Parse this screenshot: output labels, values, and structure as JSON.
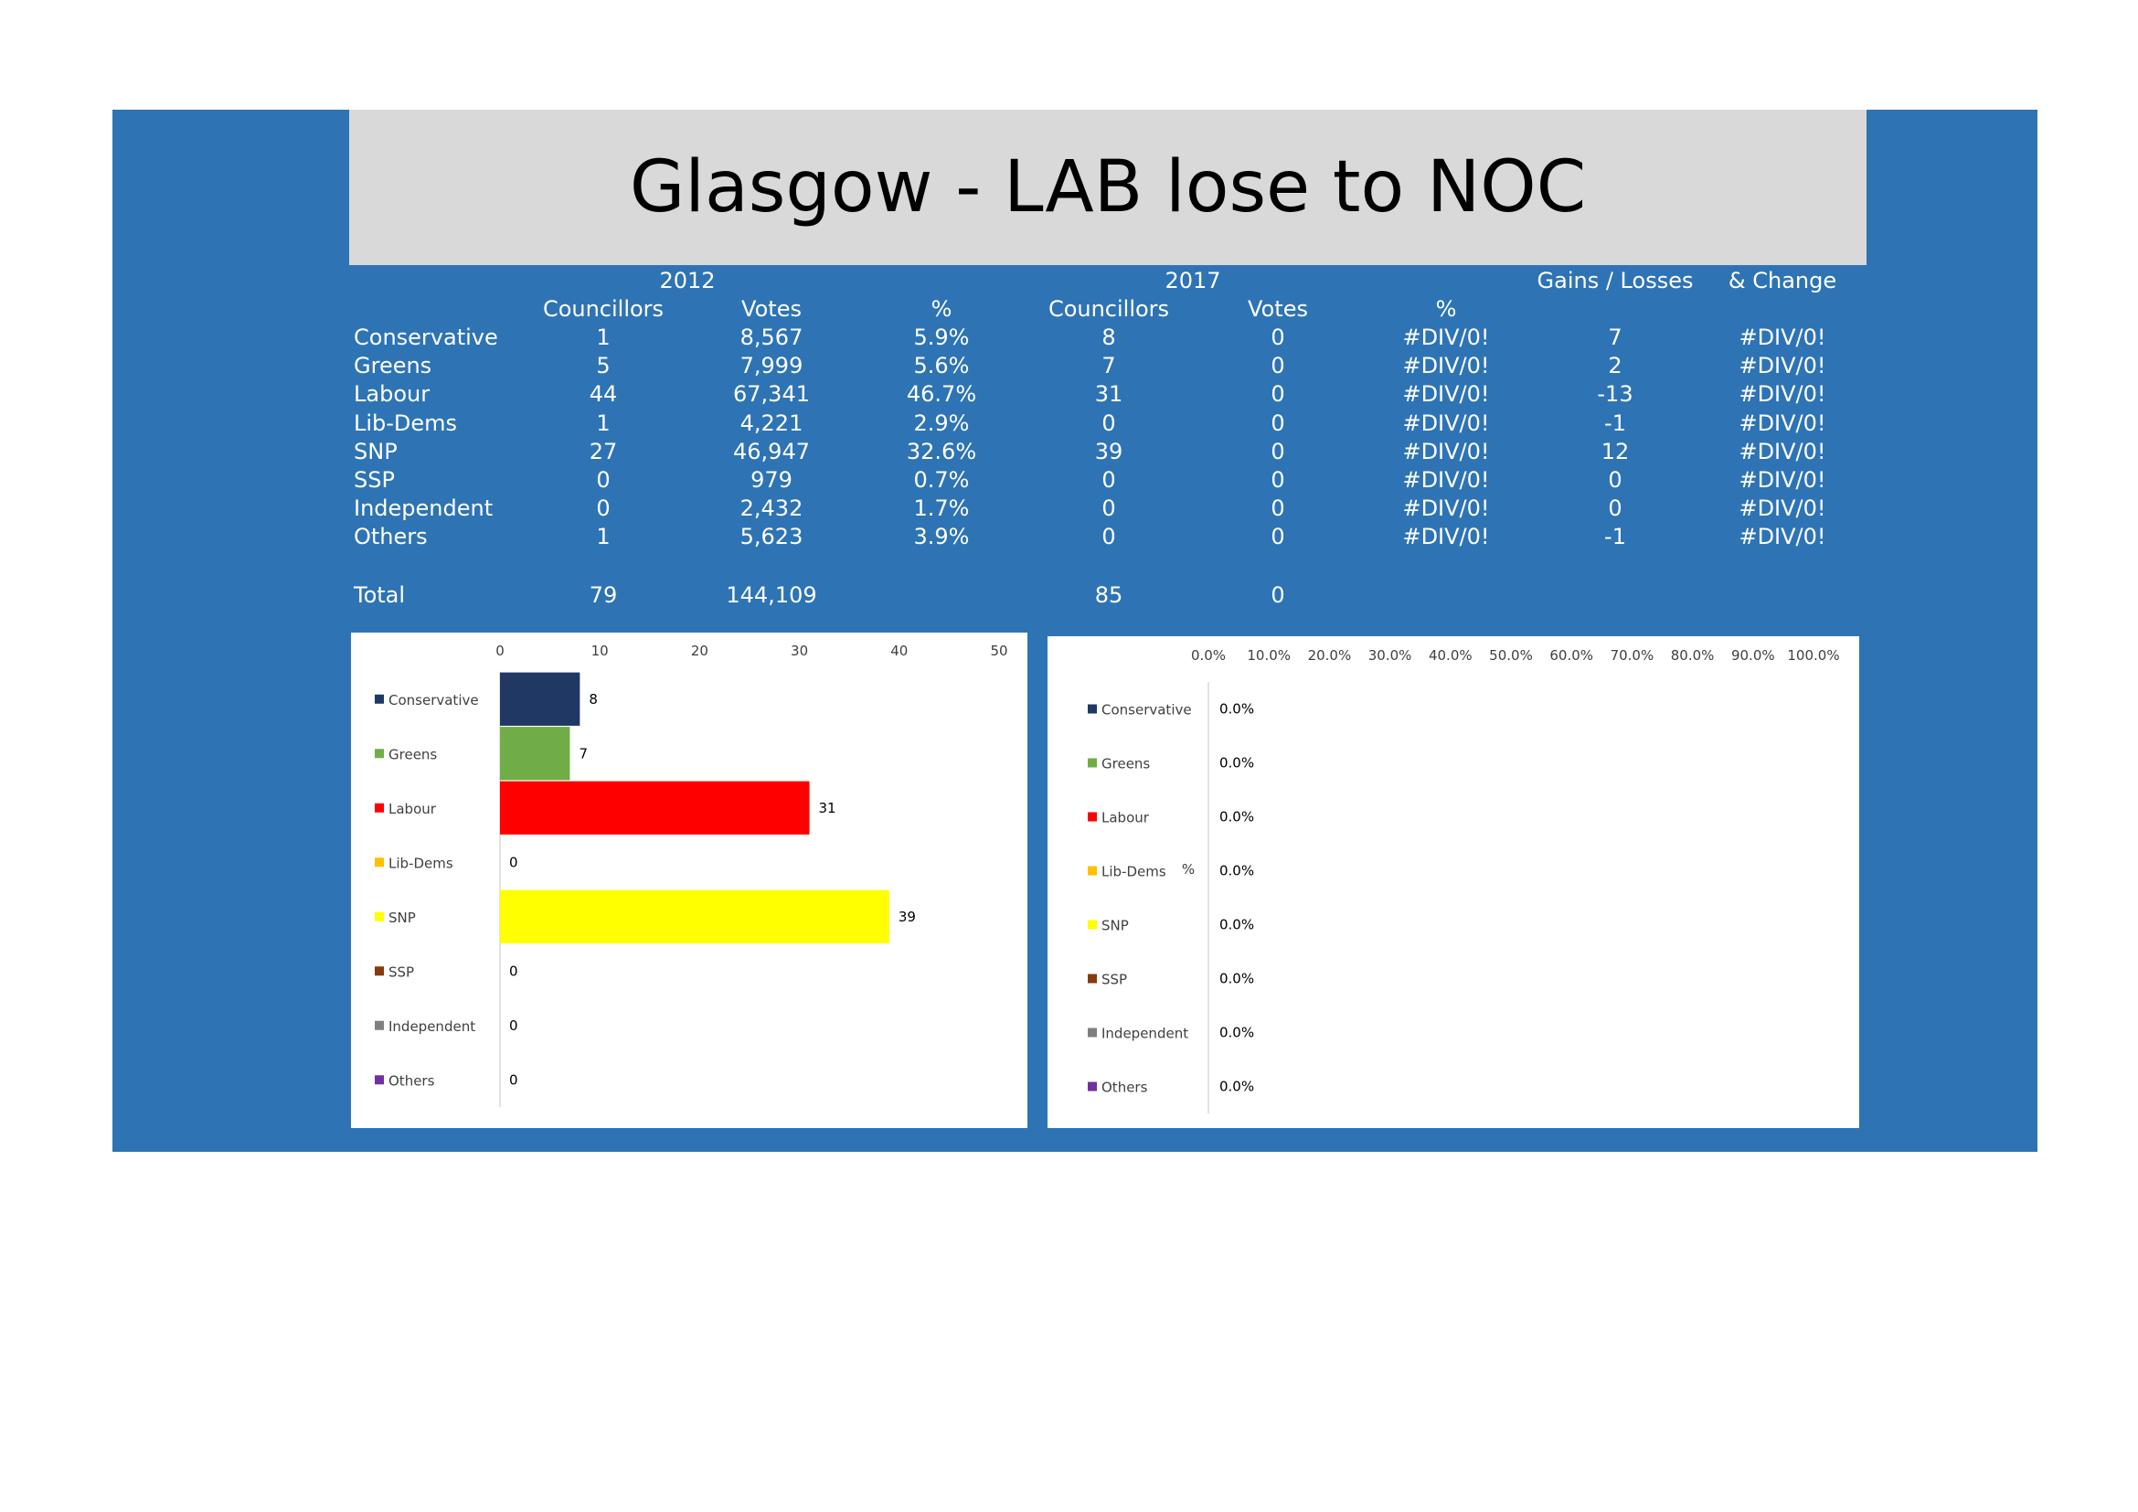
{
  "title": "Glasgow - LAB lose to NOC",
  "table": {
    "year_headers": [
      "2012",
      "2017"
    ],
    "gains_losses_header": "Gains / Losses",
    "change_header": "& Change",
    "sub_headers": [
      "Councillors",
      "Votes",
      "%",
      "Councillors",
      "Votes",
      "%"
    ],
    "rows": [
      {
        "party": "Conservative",
        "c2012": "1",
        "v2012": "8,567",
        "p2012": "5.9%",
        "c2017": "8",
        "v2017": "0",
        "p2017": "#DIV/0!",
        "gl": "7",
        "chg": "#DIV/0!"
      },
      {
        "party": "Greens",
        "c2012": "5",
        "v2012": "7,999",
        "p2012": "5.6%",
        "c2017": "7",
        "v2017": "0",
        "p2017": "#DIV/0!",
        "gl": "2",
        "chg": "#DIV/0!"
      },
      {
        "party": "Labour",
        "c2012": "44",
        "v2012": "67,341",
        "p2012": "46.7%",
        "c2017": "31",
        "v2017": "0",
        "p2017": "#DIV/0!",
        "gl": "-13",
        "chg": "#DIV/0!"
      },
      {
        "party": "Lib-Dems",
        "c2012": "1",
        "v2012": "4,221",
        "p2012": "2.9%",
        "c2017": "0",
        "v2017": "0",
        "p2017": "#DIV/0!",
        "gl": "-1",
        "chg": "#DIV/0!"
      },
      {
        "party": "SNP",
        "c2012": "27",
        "v2012": "46,947",
        "p2012": "32.6%",
        "c2017": "39",
        "v2017": "0",
        "p2017": "#DIV/0!",
        "gl": "12",
        "chg": "#DIV/0!"
      },
      {
        "party": "SSP",
        "c2012": "0",
        "v2012": "979",
        "p2012": "0.7%",
        "c2017": "0",
        "v2017": "0",
        "p2017": "#DIV/0!",
        "gl": "0",
        "chg": "#DIV/0!"
      },
      {
        "party": "Independent",
        "c2012": "0",
        "v2012": "2,432",
        "p2012": "1.7%",
        "c2017": "0",
        "v2017": "0",
        "p2017": "#DIV/0!",
        "gl": "0",
        "chg": "#DIV/0!"
      },
      {
        "party": "Others",
        "c2012": "1",
        "v2012": "5,623",
        "p2012": "3.9%",
        "c2017": "0",
        "v2017": "0",
        "p2017": "#DIV/0!",
        "gl": "-1",
        "chg": "#DIV/0!"
      }
    ],
    "total": {
      "label": "Total",
      "c2012": "79",
      "v2012": "144,109",
      "c2017": "85",
      "v2017": "0"
    }
  },
  "colors": {
    "Conservative": "#1f3864",
    "Greens": "#70ad47",
    "Labour": "#ff0000",
    "Lib-Dems": "#ffc000",
    "SNP": "#ffff00",
    "SSP": "#843c0c",
    "Independent": "#7f7f7f",
    "Others": "#7030a0"
  },
  "chart_data": [
    {
      "type": "bar",
      "orientation": "horizontal",
      "categories": [
        "Conservative",
        "Greens",
        "Labour",
        "Lib-Dems",
        "SNP",
        "SSP",
        "Independent",
        "Others"
      ],
      "values": [
        8,
        7,
        31,
        0,
        39,
        0,
        0,
        0
      ],
      "data_labels": [
        "8",
        "7",
        "31",
        "0",
        "39",
        "0",
        "0",
        "0"
      ],
      "xlim": [
        0,
        50
      ],
      "ticks": [
        "0",
        "10",
        "20",
        "30",
        "40",
        "50"
      ],
      "tick_values": [
        0,
        10,
        20,
        30,
        40,
        50
      ],
      "title": "",
      "xlabel": "",
      "ylabel": "",
      "grid": false,
      "legend": "left"
    },
    {
      "type": "bar",
      "orientation": "horizontal",
      "categories": [
        "Conservative",
        "Greens",
        "Labour",
        "Lib-Dems",
        "SNP",
        "SSP",
        "Independent",
        "Others"
      ],
      "values": [
        0,
        0,
        0,
        0,
        0,
        0,
        0,
        0
      ],
      "data_labels": [
        "0.0%",
        "0.0%",
        "0.0%",
        "0.0%",
        "0.0%",
        "0.0%",
        "0.0%",
        "0.0%"
      ],
      "xlim": [
        0,
        1
      ],
      "ticks": [
        "0.0%",
        "10.0%",
        "20.0%",
        "30.0%",
        "40.0%",
        "50.0%",
        "60.0%",
        "70.0%",
        "80.0%",
        "90.0%",
        "100.0%"
      ],
      "tick_values": [
        0,
        0.1,
        0.2,
        0.3,
        0.4,
        0.5,
        0.6,
        0.7,
        0.8,
        0.9,
        1.0
      ],
      "title": "",
      "xlabel": "",
      "ylabel": "%",
      "grid": false,
      "legend": "left"
    }
  ]
}
